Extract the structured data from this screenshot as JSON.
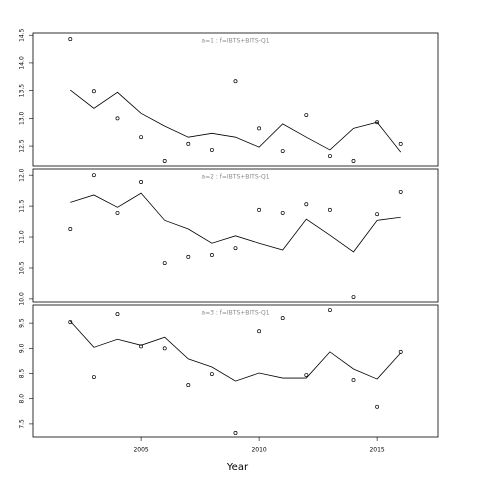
{
  "chart_data": [
    {
      "type": "line",
      "title": "a=1 : f=IBTS+BITS-Q1",
      "x": [
        2002,
        2003,
        2004,
        2005,
        2006,
        2007,
        2008,
        2009,
        2010,
        2011,
        2012,
        2013,
        2014,
        2015,
        2016
      ],
      "series": [
        {
          "color": "#000000",
          "style": "line",
          "values": [
            13.51,
            13.18,
            13.47,
            13.09,
            12.86,
            12.66,
            12.73,
            12.66,
            12.48,
            12.9,
            12.66,
            12.43,
            12.82,
            12.93,
            12.39
          ]
        },
        {
          "color": "#000000",
          "style": "points",
          "values": [
            14.43,
            13.49,
            13.0,
            12.66,
            12.23,
            12.54,
            12.43,
            13.67,
            12.82,
            12.41,
            13.06,
            12.32,
            12.23,
            12.93,
            12.54
          ]
        }
      ],
      "xlim": [
        2000.42,
        2017.58
      ],
      "ylim": [
        12.14,
        14.54
      ],
      "yticks": [
        12.5,
        {
          "value": 13,
          "label": "13.0"
        },
        13.5,
        {
          "value": 14,
          "label": "14.0"
        },
        14.5
      ]
    },
    {
      "type": "line",
      "title": "a=2 : f=IBTS+BITS-Q1",
      "x": [
        2002,
        2003,
        2004,
        2005,
        2006,
        2007,
        2008,
        2009,
        2010,
        2011,
        2012,
        2013,
        2014,
        2015,
        2016
      ],
      "series": [
        {
          "color": "#000000",
          "style": "line",
          "values": [
            11.56,
            11.68,
            11.48,
            11.71,
            11.27,
            11.13,
            10.9,
            11.02,
            10.9,
            10.79,
            11.29,
            11.03,
            10.76,
            11.27,
            11.32
          ]
        },
        {
          "color": "#000000",
          "style": "points",
          "values": [
            11.13,
            12.0,
            11.39,
            11.89,
            10.58,
            10.68,
            10.71,
            10.82,
            11.44,
            11.39,
            11.53,
            11.44,
            10.03,
            11.37,
            11.73
          ]
        }
      ],
      "xlim": [
        2000.42,
        2017.58
      ],
      "ylim": [
        9.95,
        12.1
      ],
      "yticks": [
        {
          "value": 10,
          "label": "10.0"
        },
        10.5,
        {
          "value": 11,
          "label": "11.0"
        },
        11.5,
        {
          "value": 12,
          "label": "12.0"
        }
      ]
    },
    {
      "type": "line",
      "title": "a=3 : f=IBTS+BITS-Q1",
      "x": [
        2002,
        2003,
        2004,
        2005,
        2006,
        2007,
        2008,
        2009,
        2010,
        2011,
        2012,
        2013,
        2014,
        2015,
        2016
      ],
      "series": [
        {
          "color": "#000000",
          "style": "line",
          "values": [
            9.54,
            9.02,
            9.18,
            9.06,
            9.22,
            8.79,
            8.63,
            8.35,
            8.51,
            8.41,
            8.41,
            8.93,
            8.59,
            8.39,
            8.91
          ]
        },
        {
          "color": "#000000",
          "style": "points",
          "values": [
            9.52,
            8.43,
            9.68,
            9.04,
            9.0,
            8.27,
            8.49,
            7.32,
            9.34,
            9.6,
            8.47,
            9.76,
            8.37,
            7.84,
            8.93
          ]
        }
      ],
      "xlim": [
        2000.42,
        2017.58
      ],
      "ylim": [
        7.24,
        9.86
      ],
      "yticks": [
        7.5,
        {
          "value": 8,
          "label": "8.0"
        },
        8.5,
        {
          "value": 9,
          "label": "9.0"
        },
        9.5
      ],
      "xticks": [
        2005,
        2010,
        2015
      ],
      "xlabel": "Year"
    }
  ]
}
